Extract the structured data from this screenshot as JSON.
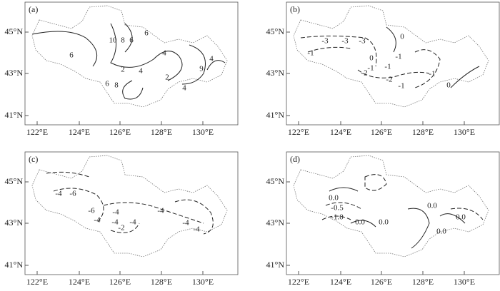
{
  "panels": [
    {
      "label": "(a)",
      "xticks": [
        "122°E",
        "124°E",
        "126°E",
        "128°E",
        "130°E"
      ],
      "yticks": [
        "45°N",
        "43°N",
        "41°N"
      ],
      "contour_labels": [
        "10",
        "8",
        "6",
        "6",
        "4",
        "6",
        "2",
        "4",
        "9",
        "4",
        "2",
        "4",
        "6",
        "8"
      ]
    },
    {
      "label": "(b)",
      "xticks": [
        "122°E",
        "124°E",
        "126°E",
        "128°E",
        "130°E"
      ],
      "yticks": [
        "45°N",
        "43°N",
        "41°N"
      ],
      "contour_labels": [
        "0",
        "-3",
        "-3",
        "-3",
        "-1",
        "0",
        "-1",
        "-1",
        "-2",
        "-1",
        "-1",
        "-2",
        "-1",
        "0"
      ]
    },
    {
      "label": "(c)",
      "xticks": [
        "122°E",
        "124°E",
        "126°E",
        "128°E",
        "130°E"
      ],
      "yticks": [
        "45°N",
        "43°N",
        "41°N"
      ],
      "contour_labels": [
        "-4",
        "-6",
        "-6",
        "-4",
        "-4",
        "-4",
        "-4",
        "-4",
        "-2",
        "-4",
        "-4"
      ]
    },
    {
      "label": "(d)",
      "xticks": [
        "122°E",
        "124°E",
        "126°E",
        "128°E",
        "130°E"
      ],
      "yticks": [
        "45°N",
        "43°N",
        "41°N"
      ],
      "contour_labels": [
        "0.0",
        "-0.5",
        "-1.0",
        "0.0",
        "0.0",
        "0.0",
        "0.0",
        "0.0"
      ]
    }
  ]
}
